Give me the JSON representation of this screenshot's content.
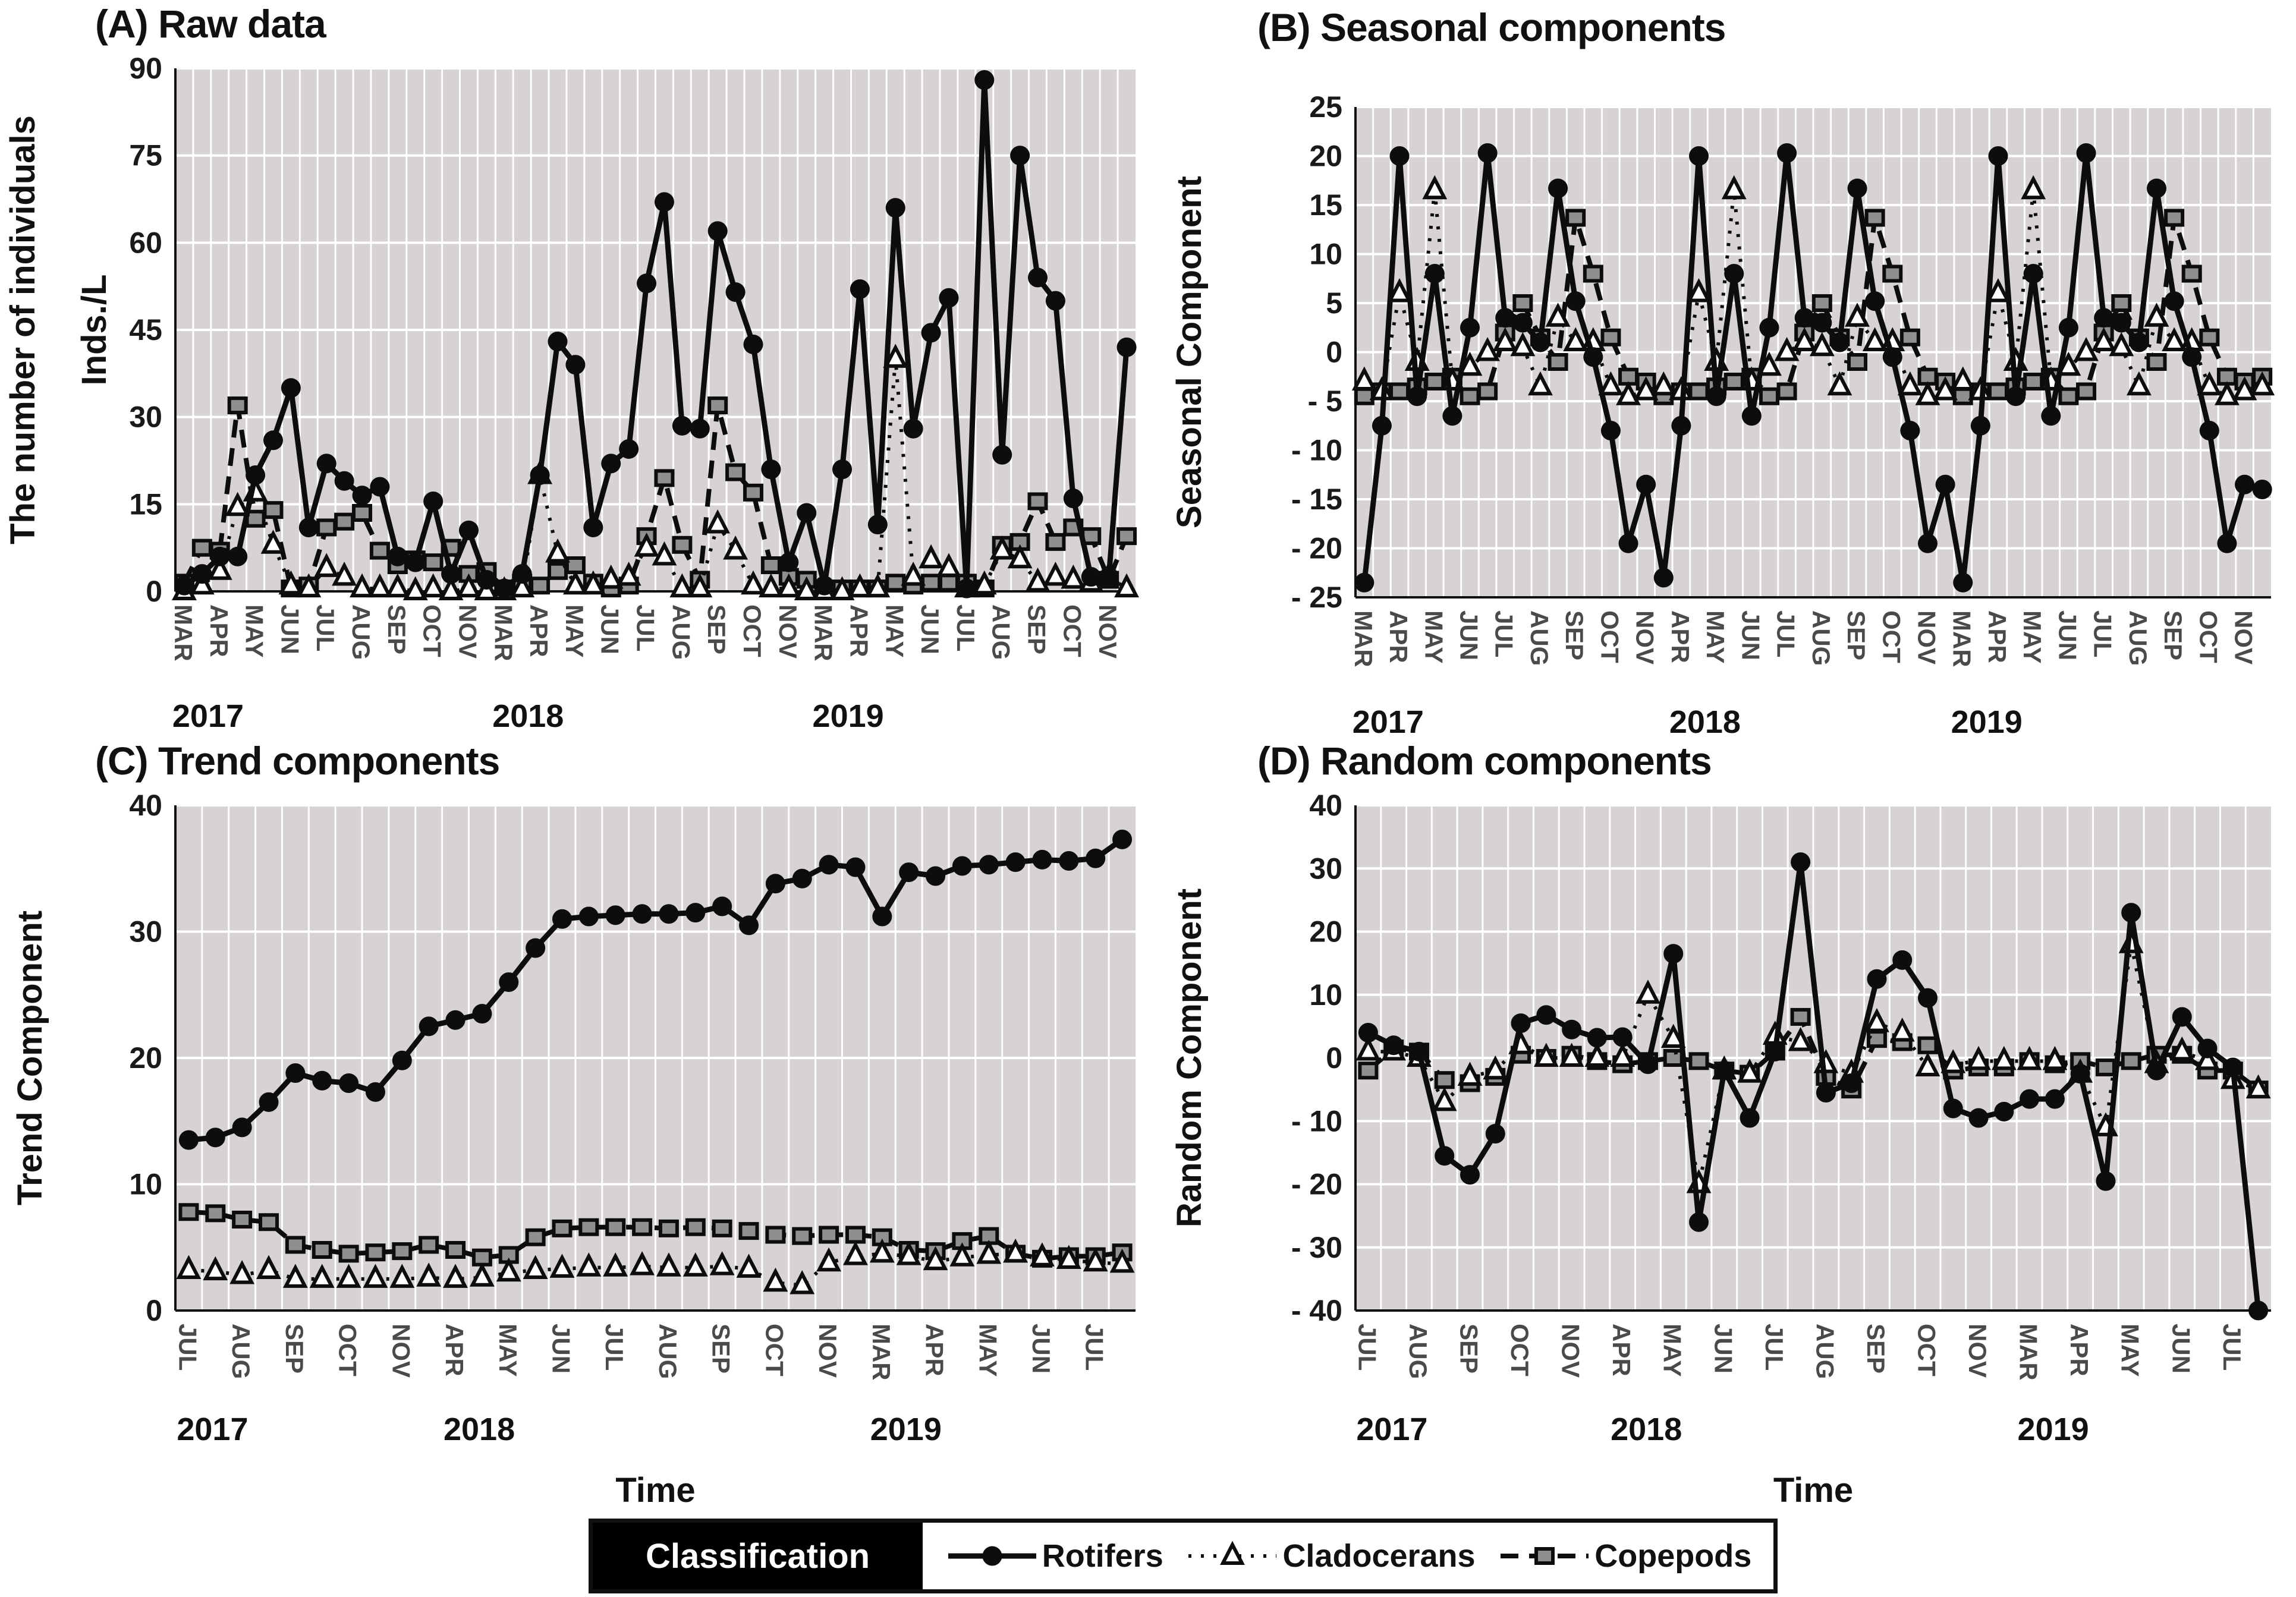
{
  "legend": {
    "classification_label": "Classification",
    "items": [
      {
        "label": "Rotifers",
        "marker": "circle",
        "line": "solid"
      },
      {
        "label": "Cladocerans",
        "marker": "triangle",
        "line": "dotted"
      },
      {
        "label": "Copepods",
        "marker": "square",
        "line": "dashed"
      }
    ]
  },
  "colors": {
    "plot_bg": "#d6d3d2",
    "grid": "#ffffff",
    "line": "#0d0d0d",
    "square_fill": "#8f8f8f",
    "triangle_fill": "#ffffff",
    "tick_text": "#4a4a4a",
    "axis_text": "#1a1a1a"
  },
  "chart_data": [
    {
      "id": "A",
      "type": "line",
      "title": "(A) Raw data",
      "ylabels": [
        "The number of individuals",
        "Inds./L"
      ],
      "xlabel": "",
      "ylim": [
        0,
        90
      ],
      "yticks": [
        0,
        15,
        30,
        45,
        60,
        75,
        90
      ],
      "samples_per_month": 2,
      "grid": true,
      "legend_position": "bottom-shared",
      "month_labels": [
        "MAR",
        "APR",
        "MAY",
        "JUN",
        "JUL",
        "AUG",
        "SEP",
        "OCT",
        "NOV",
        "MAR",
        "APR",
        "MAY",
        "JUN",
        "JUL",
        "AUG",
        "SEP",
        "OCT",
        "NOV",
        "MAR",
        "APR",
        "MAY",
        "JUN",
        "JUL",
        "AUG",
        "SEP",
        "OCT",
        "NOV"
      ],
      "year_labels": [
        {
          "label": "2017",
          "month": 0
        },
        {
          "label": "2018",
          "month": 9
        },
        {
          "label": "2019",
          "month": 18
        }
      ],
      "series": [
        {
          "name": "Rotifers",
          "marker": "circle",
          "line": "solid",
          "values": [
            1,
            3,
            6,
            6,
            20,
            26,
            35,
            11,
            22,
            19,
            16.5,
            18,
            6,
            5,
            15.5,
            3,
            10.5,
            2,
            0.5,
            3,
            20,
            43,
            39,
            11,
            22,
            24.5,
            53,
            67,
            28.5,
            28,
            62,
            51.5,
            42.5,
            21,
            5,
            13.5,
            1,
            21,
            52,
            11.5,
            66,
            28,
            44.5,
            50.5,
            0.5,
            88,
            23.5,
            75,
            54,
            50,
            16,
            2.5,
            2.5,
            42
          ]
        },
        {
          "name": "Cladocerans",
          "marker": "triangle",
          "line": "dotted",
          "values": [
            0,
            1,
            3.5,
            14.5,
            17,
            8,
            1,
            0.5,
            4,
            2.5,
            0.5,
            0.5,
            0.5,
            0,
            0.5,
            0,
            0.5,
            0,
            0,
            0.5,
            20,
            6.5,
            1,
            1,
            2,
            2.5,
            7.5,
            6,
            0.5,
            0.5,
            11.5,
            7,
            1,
            0.5,
            0.5,
            0,
            0,
            0,
            0.5,
            0.5,
            40,
            2.5,
            5.5,
            4,
            0.5,
            1,
            7,
            5.5,
            1.5,
            2.5,
            2,
            1.5,
            2.5,
            0.5
          ]
        },
        {
          "name": "Copepods",
          "marker": "square",
          "line": "dashed",
          "values": [
            1.5,
            7.5,
            7,
            32,
            12.5,
            14,
            0.5,
            1,
            11,
            12,
            13.5,
            7,
            4.5,
            5.5,
            5,
            7.5,
            3,
            3.5,
            0.5,
            1.5,
            1,
            3.5,
            4.5,
            1.5,
            0.5,
            1,
            9.5,
            19.5,
            8,
            2,
            32,
            20.5,
            17,
            4.5,
            2.5,
            2,
            0.5,
            0.5,
            0.5,
            0.5,
            1.5,
            1,
            1.5,
            1.5,
            1.5,
            0.5,
            8,
            8.5,
            15.5,
            8.5,
            11,
            9.5,
            2,
            9.5
          ]
        }
      ]
    },
    {
      "id": "B",
      "type": "line",
      "title": "(B) Seasonal components",
      "ylabels": [
        "Seasonal Component"
      ],
      "xlabel": "",
      "ylim": [
        -25,
        25
      ],
      "yticks": [
        -25,
        -20,
        -15,
        -10,
        -5,
        0,
        5,
        10,
        15,
        20,
        25
      ],
      "samples_per_month": 2,
      "grid": true,
      "month_labels": [
        "MAR",
        "APR",
        "MAY",
        "JUN",
        "JUL",
        "AUG",
        "SEP",
        "OCT",
        "NOV",
        "APR",
        "MAY",
        "JUN",
        "JUL",
        "AUG",
        "SEP",
        "OCT",
        "NOV",
        "MAR",
        "APR",
        "MAY",
        "JUN",
        "JUL",
        "AUG",
        "SEP",
        "OCT",
        "NOV"
      ],
      "year_labels": [
        {
          "label": "2017",
          "month": 0
        },
        {
          "label": "2018",
          "month": 9
        },
        {
          "label": "2019",
          "month": 17
        }
      ],
      "series": [
        {
          "name": "Rotifers",
          "marker": "circle",
          "line": "solid",
          "values": [
            -23.5,
            -7.5,
            20,
            -4.5,
            8,
            -6.5,
            2.5,
            20.3,
            3.5,
            3,
            1,
            16.7,
            5.2,
            -0.5,
            -8,
            -19.5,
            -13.5,
            -23,
            -7.5,
            20,
            -4.5,
            8,
            -6.5,
            2.5,
            20.3,
            3.5,
            3,
            1,
            16.7,
            5.2,
            -0.5,
            -8,
            -19.5,
            -13.5,
            -23.5,
            -7.5,
            20,
            -4.5,
            8,
            -6.5,
            2.5,
            20.3,
            3.5,
            3,
            1,
            16.7,
            5.2,
            -0.5,
            -8,
            -19.5,
            -13.5,
            -14
          ]
        },
        {
          "name": "Cladocerans",
          "marker": "triangle",
          "line": "dotted",
          "values": [
            -3,
            -4,
            6,
            -1,
            16.5,
            -3,
            -1.5,
            0,
            1,
            0.5,
            -3.5,
            3.5,
            1,
            1,
            -3.5,
            -4.5,
            -4,
            -3.5,
            -4,
            6,
            -1,
            16.5,
            -3,
            -1.5,
            0,
            1,
            0.5,
            -3.5,
            3.5,
            1,
            1,
            -3.5,
            -4.5,
            -4,
            -3,
            -4,
            6,
            -1,
            16.5,
            -3,
            -1.5,
            0,
            1,
            0.5,
            -3.5,
            3.5,
            1,
            1,
            -3.5,
            -4.5,
            -4,
            -3.5
          ]
        },
        {
          "name": "Copepods",
          "marker": "square",
          "line": "dashed",
          "values": [
            -4.5,
            -4,
            -4,
            -3.5,
            -3,
            -2.5,
            -4.5,
            -4,
            2,
            5,
            1.5,
            -1,
            13.7,
            8,
            1.5,
            -2.5,
            -3,
            -4.5,
            -4,
            -4,
            -3.5,
            -3,
            -2.5,
            -4.5,
            -4,
            2,
            5,
            1.5,
            -1,
            13.7,
            8,
            1.5,
            -2.5,
            -3,
            -4.5,
            -4,
            -4,
            -3.5,
            -3,
            -2.5,
            -4.5,
            -4,
            2,
            5,
            1.5,
            -1,
            13.7,
            8,
            1.5,
            -2.5,
            -3,
            -2.5
          ]
        }
      ]
    },
    {
      "id": "C",
      "type": "line",
      "title": "(C) Trend components",
      "ylabels": [
        "Trend Component"
      ],
      "xlabel": "Time",
      "ylim": [
        0,
        40
      ],
      "yticks": [
        0,
        10,
        20,
        30,
        40
      ],
      "samples_per_month": 2,
      "grid": true,
      "month_labels": [
        "JUL",
        "AUG",
        "SEP",
        "OCT",
        "NOV",
        "APR",
        "MAY",
        "JUN",
        "JUL",
        "AUG",
        "SEP",
        "OCT",
        "NOV",
        "MAR",
        "APR",
        "MAY",
        "JUN",
        "JUL"
      ],
      "year_labels": [
        {
          "label": "2017",
          "month": 0
        },
        {
          "label": "2018",
          "month": 5
        },
        {
          "label": "2019",
          "month": 13
        }
      ],
      "series": [
        {
          "name": "Rotifers",
          "marker": "circle",
          "line": "solid",
          "values": [
            13.5,
            13.7,
            14.5,
            16.5,
            18.8,
            18.2,
            18,
            17.3,
            19.8,
            22.5,
            23,
            23.5,
            26,
            28.7,
            31,
            31.2,
            31.3,
            31.4,
            31.4,
            31.5,
            32,
            30.5,
            33.8,
            34.2,
            35.3,
            35.1,
            31.2,
            34.7,
            34.4,
            35.2,
            35.3,
            35.5,
            35.7,
            35.6,
            35.8,
            37.3
          ]
        },
        {
          "name": "Cladocerans",
          "marker": "triangle",
          "line": "dotted",
          "values": [
            3.2,
            3.1,
            2.8,
            3.2,
            2.5,
            2.5,
            2.5,
            2.5,
            2.5,
            2.6,
            2.5,
            2.6,
            3,
            3.2,
            3.3,
            3.4,
            3.4,
            3.5,
            3.4,
            3.4,
            3.5,
            3.3,
            2.2,
            2,
            3.8,
            4.3,
            4.5,
            4.3,
            3.9,
            4.2,
            4.4,
            4.5,
            4.2,
            4,
            3.8,
            3.7
          ]
        },
        {
          "name": "Copepods",
          "marker": "square",
          "line": "dashed",
          "values": [
            7.8,
            7.7,
            7.2,
            7,
            5.2,
            4.8,
            4.5,
            4.6,
            4.7,
            5.2,
            4.8,
            4.2,
            4.4,
            5.8,
            6.5,
            6.6,
            6.6,
            6.6,
            6.5,
            6.6,
            6.5,
            6.3,
            6,
            5.9,
            6,
            6,
            5.8,
            4.8,
            4.7,
            5.5,
            5.9,
            4.5,
            4.1,
            4.3,
            4.3,
            4.6
          ]
        }
      ]
    },
    {
      "id": "D",
      "type": "line",
      "title": "(D) Random components",
      "ylabels": [
        "Random Component"
      ],
      "xlabel": "Time",
      "ylim": [
        -40,
        40
      ],
      "yticks": [
        -40,
        -30,
        -20,
        -10,
        0,
        10,
        20,
        30,
        40
      ],
      "samples_per_month": 2,
      "grid": true,
      "month_labels": [
        "JUL",
        "AUG",
        "SEP",
        "OCT",
        "NOV",
        "APR",
        "MAY",
        "JUN",
        "JUL",
        "AUG",
        "SEP",
        "OCT",
        "NOV",
        "MAR",
        "APR",
        "MAY",
        "JUN",
        "JUL"
      ],
      "year_labels": [
        {
          "label": "2017",
          "month": 0
        },
        {
          "label": "2018",
          "month": 5
        },
        {
          "label": "2019",
          "month": 13
        }
      ],
      "series": [
        {
          "name": "Rotifers",
          "marker": "circle",
          "line": "solid",
          "values": [
            4,
            2,
            1,
            -15.5,
            -18.5,
            -12,
            5.5,
            6.8,
            4.5,
            3.2,
            3.3,
            -1,
            16.5,
            -26,
            -2,
            -9.5,
            1,
            31,
            -5.5,
            -4,
            12.5,
            15.5,
            9.5,
            -8,
            -9.5,
            -8.5,
            -6.5,
            -6.5,
            -2.5,
            -19.5,
            23,
            -2,
            6.5,
            1.5,
            -1.5,
            -40
          ]
        },
        {
          "name": "Cladocerans",
          "marker": "triangle",
          "line": "dotted",
          "values": [
            1,
            1,
            0,
            -7,
            -3,
            -2,
            2,
            0,
            0,
            0,
            0,
            10,
            3,
            -20,
            -2,
            -2.5,
            3.5,
            2.5,
            -1,
            -2.5,
            5.5,
            4,
            -1.5,
            -1,
            -0.5,
            -0.5,
            -0.5,
            -0.5,
            -2.5,
            -11,
            18,
            -1,
            1,
            -0.5,
            -3.5,
            -5
          ]
        },
        {
          "name": "Copepods",
          "marker": "square",
          "line": "dashed",
          "values": [
            -2,
            1.5,
            1,
            -3.5,
            -4,
            -3,
            0.5,
            0,
            0.5,
            -0.5,
            -1,
            -0.5,
            0,
            -0.5,
            -2,
            -2.5,
            1,
            6.5,
            -3,
            -5,
            3,
            2.5,
            2,
            -2,
            -1.5,
            -1.5,
            -0.5,
            -1,
            -0.5,
            -1.5,
            -0.5,
            0.5,
            0.5,
            -2,
            -2,
            -5
          ]
        }
      ]
    }
  ]
}
